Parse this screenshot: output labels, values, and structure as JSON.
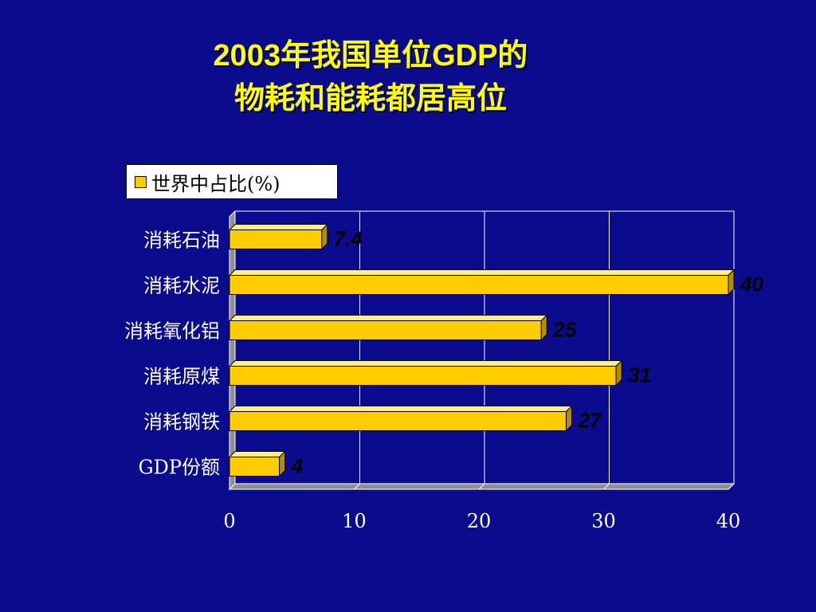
{
  "slide": {
    "title_line_1": "2003年我国单位GDP的",
    "title_line_2": "物耗和能耗都居高位"
  },
  "chart_data": {
    "type": "bar",
    "orientation": "horizontal",
    "categories": [
      "消耗石油",
      "消耗水泥",
      "消耗氧化铝",
      "消耗原煤",
      "消耗钢铁",
      "GDP份额"
    ],
    "series": [
      {
        "name": "世界中占比(%)",
        "values": [
          7.4,
          40,
          25,
          31,
          27,
          4
        ]
      }
    ],
    "data_labels": [
      "7.4",
      "40",
      "25",
      "31",
      "27",
      "4"
    ],
    "x_ticks": [
      "0",
      "10",
      "20",
      "30",
      "40"
    ],
    "xlim": [
      0,
      40
    ],
    "grid": true,
    "legend_position": "top"
  },
  "colors": {
    "background": "#0b0b8e",
    "title": "#ffff00",
    "bar_face": "#ffcc00",
    "bar_top": "#ffee88",
    "bar_side": "#b38f00",
    "plot_area": "#0b0b8e",
    "axis_text": "#ffffff",
    "data_label": "#000000"
  }
}
